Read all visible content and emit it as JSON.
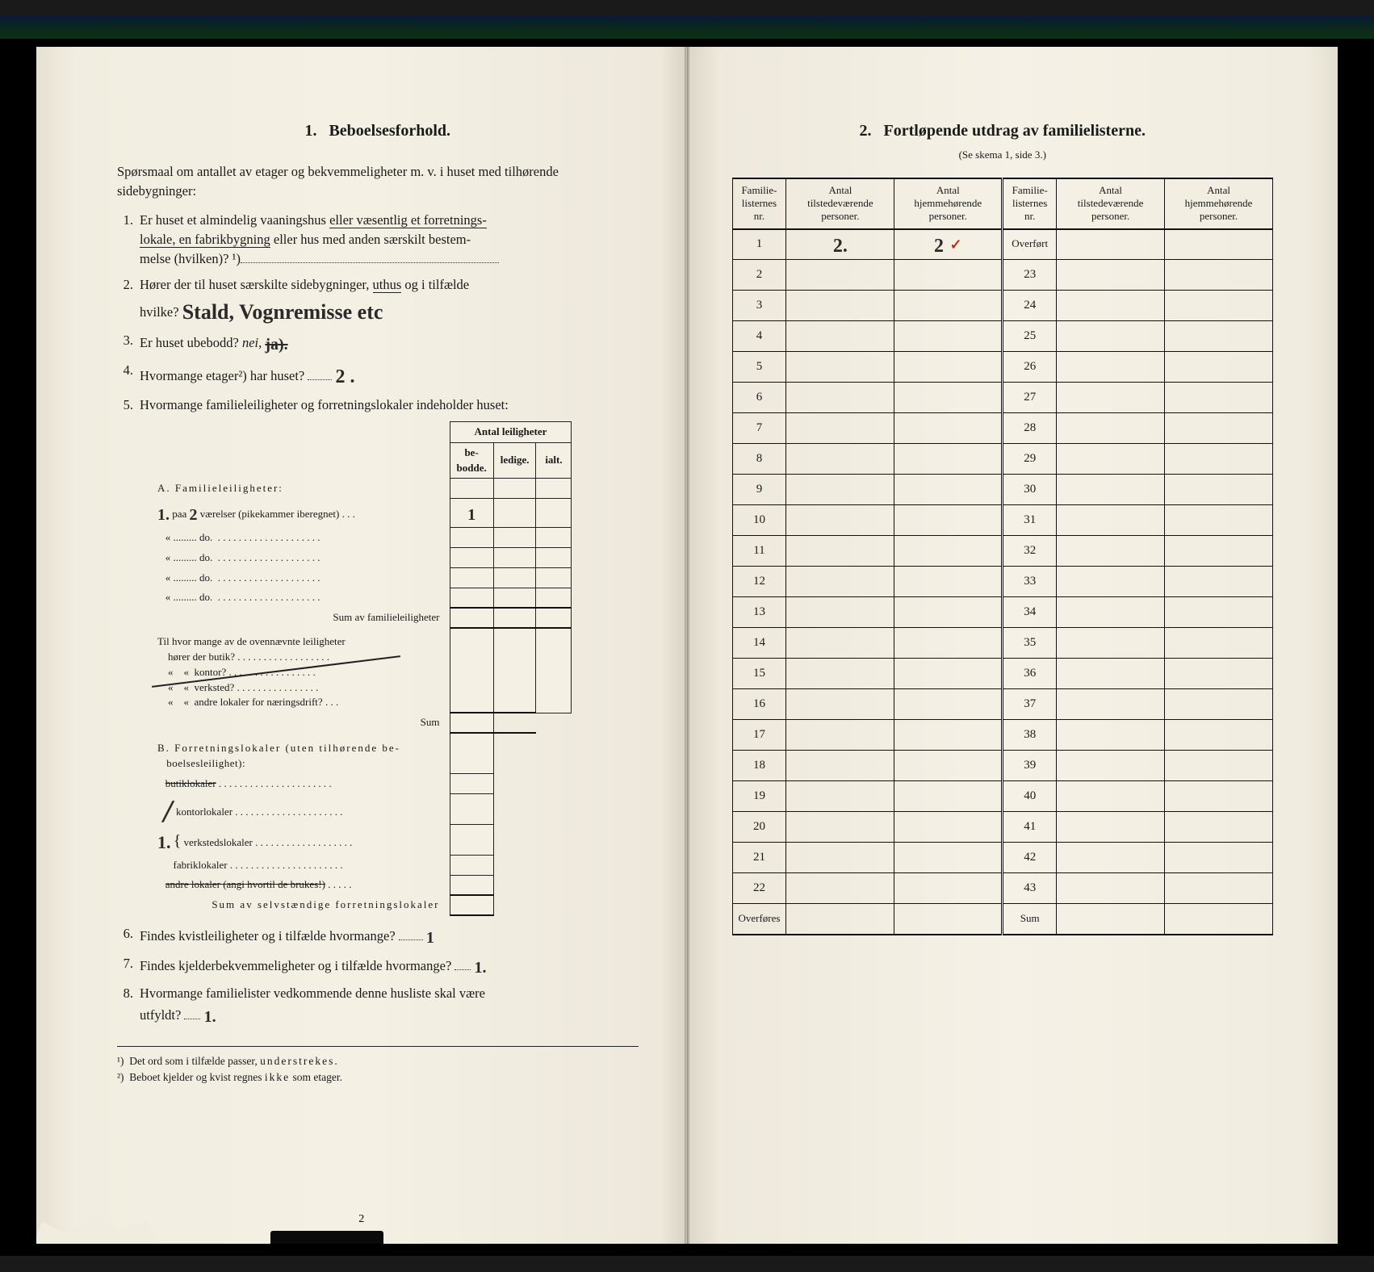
{
  "left": {
    "section_number": "1.",
    "section_title": "Beboelsesforhold.",
    "intro": "Spørsmaal om antallet av etager og bekvemmeligheter m. v. i huset med tilhørende sidebygninger:",
    "q1_num": "1.",
    "q1_a": "Er huset et almindelig vaaningshus ",
    "q1_b": "eller væsentlig et forretnings-",
    "q1_c": "lokale, en fabrikbygning",
    "q1_d": " eller hus med anden særskilt bestem-",
    "q1_e": "melse (hvilken)? ¹)",
    "q2_num": "2.",
    "q2_a": "Hører der til huset særskilte sidebygninger, ",
    "q2_u": "uthus",
    "q2_b": " og i tilfælde",
    "q2_c": "hvilke?",
    "q2_hw": "Stald, Vognremisse etc",
    "q3_num": "3.",
    "q3_a": "Er huset ubebodd? ",
    "q3_b": "nei, ",
    "q3_hw": "ja).",
    "q4_num": "4.",
    "q4_a": "Hvormange etager²) har huset?",
    "q4_hw": "2 .",
    "q5_num": "5.",
    "q5_a": "Hvormange familieleiligheter og forretningslokaler indeholder huset:",
    "tbl_hdr": "Antal leiligheter",
    "tbl_c1": "be-\nbodde.",
    "tbl_c2": "ledige.",
    "tbl_c3": "ialt.",
    "secA": "A. Familieleiligheter:",
    "a_hw_count": "1.",
    "a_row1_a": "paa",
    "a_row1_hw": "2",
    "a_row1_b": " værelser (pikekammer iberegnet) . . .",
    "a_row1_val": "1",
    "a_row_do": "do.",
    "a_sum": "Sum av familieleiligheter",
    "til_intro": "Til hvor mange av de ovennævnte leiligheter",
    "til_1": "hører der butik?",
    "til_2": "kontor?",
    "til_3": "verksted?",
    "til_4": "andre lokaler for næringsdrift?",
    "til_sum": "Sum",
    "quote": "«",
    "secB": "B. Forretningslokaler (uten tilhørende be-",
    "secB2": "boelsesleilighet):",
    "b_hw": "1.",
    "b1": "butiklokaler",
    "b2": "kontorlokaler",
    "b3": "verkstedslokaler",
    "b4": "fabriklokaler",
    "b5": "andre lokaler (angi hvortil de brukes!)",
    "b_sum": "Sum av selvstændige forretningslokaler",
    "q6_num": "6.",
    "q6": "Findes kvistleiligheter og i tilfælde hvormange?",
    "q6_hw": "1",
    "q7_num": "7.",
    "q7": "Findes kjelderbekvemmeligheter og i tilfælde hvormange?",
    "q7_hw": "1.",
    "q8_num": "8.",
    "q8a": "Hvormange familielister vedkommende denne husliste skal være",
    "q8b": "utfyldt?",
    "q8_hw": "1.",
    "fn1_num": "¹)",
    "fn1": "Det ord som i tilfælde passer, ",
    "fn1_u": "understrekes.",
    "fn2_num": "²)",
    "fn2a": "Beboet kjelder og kvist regnes ",
    "fn2_b": "ikke",
    "fn2c": " som etager.",
    "pagenum": "2"
  },
  "right": {
    "section_number": "2.",
    "section_title": "Fortløpende utdrag av familielisterne.",
    "subtitle": "(Se skema 1, side 3.)",
    "h1": "Familie-\nlisternes\nnr.",
    "h2": "Antal\ntilstedeværende\npersoner.",
    "h3": "Antal\nhjemmehørende\npersoner.",
    "row1_n": "1",
    "row1_hw1": "2.",
    "row1_hw2": "2",
    "row1_check": "✓",
    "overfort": "Overført",
    "nums_left": [
      "2",
      "3",
      "4",
      "5",
      "6",
      "7",
      "8",
      "9",
      "10",
      "11",
      "12",
      "13",
      "14",
      "15",
      "16",
      "17",
      "18",
      "19",
      "20",
      "21",
      "22"
    ],
    "nums_right": [
      "23",
      "24",
      "25",
      "26",
      "27",
      "28",
      "29",
      "30",
      "31",
      "32",
      "33",
      "34",
      "35",
      "36",
      "37",
      "38",
      "39",
      "40",
      "41",
      "42",
      "43"
    ],
    "overfores": "Overføres",
    "sum": "Sum"
  },
  "colors": {
    "page_bg": "#f4f0e4",
    "ink": "#1a1a1a",
    "handwriting": "#2a2a2a",
    "red": "#c03020",
    "scan_bg": "#000000"
  }
}
